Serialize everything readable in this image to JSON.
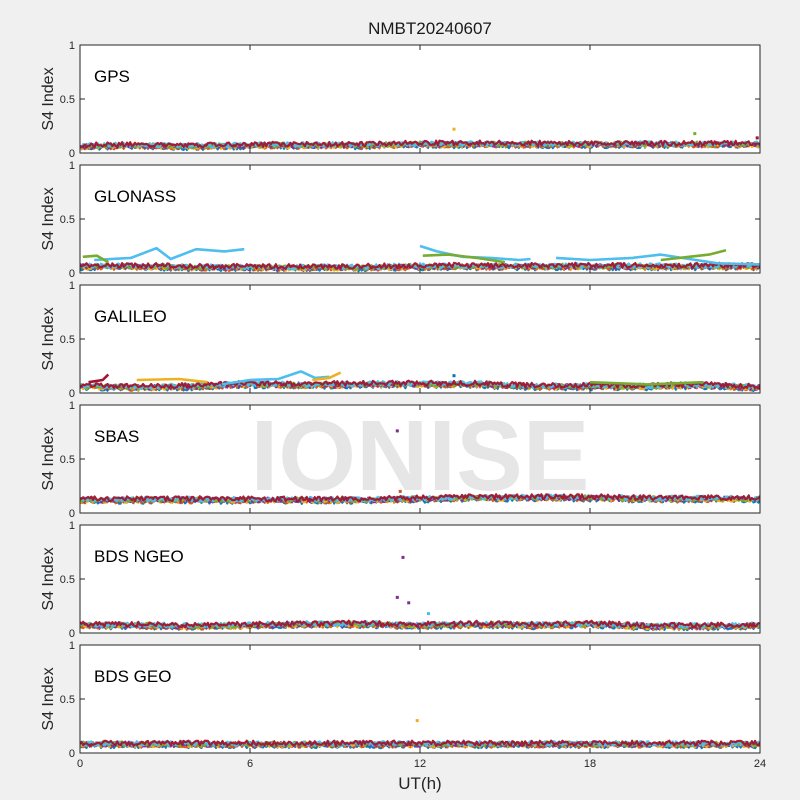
{
  "chart_data": {
    "type": "scatter",
    "title": "NMBT20240607",
    "xlabel": "UT(h)",
    "ylabel": "S4 Index",
    "xlim": [
      0,
      24
    ],
    "ylim": [
      0,
      1
    ],
    "x_ticks": [
      "0",
      "6",
      "12",
      "18",
      "24"
    ],
    "y_ticks": [
      "0",
      "0.5",
      "1"
    ],
    "grid": false,
    "watermark": "IONISE",
    "series_colors": [
      "#0072bd",
      "#d95319",
      "#edb120",
      "#7e2f8e",
      "#77ac30",
      "#4dbeee",
      "#a2142f"
    ],
    "panels": [
      {
        "label": "GPS",
        "baseline": [
          {
            "x": 0,
            "y": 0.06
          },
          {
            "x": 2,
            "y": 0.07
          },
          {
            "x": 4,
            "y": 0.06
          },
          {
            "x": 6,
            "y": 0.07
          },
          {
            "x": 8,
            "y": 0.07
          },
          {
            "x": 10,
            "y": 0.07
          },
          {
            "x": 12,
            "y": 0.08
          },
          {
            "x": 14,
            "y": 0.08
          },
          {
            "x": 16,
            "y": 0.08
          },
          {
            "x": 18,
            "y": 0.08
          },
          {
            "x": 20,
            "y": 0.08
          },
          {
            "x": 22,
            "y": 0.08
          },
          {
            "x": 24,
            "y": 0.08
          }
        ],
        "highlights": [
          {
            "x": 13.2,
            "y": 0.22,
            "color": "#edb120"
          },
          {
            "x": 21.7,
            "y": 0.18,
            "color": "#77ac30"
          },
          {
            "x": 23.9,
            "y": 0.14,
            "color": "#a2142f"
          }
        ]
      },
      {
        "label": "GLONASS",
        "baseline": [
          {
            "x": 0,
            "y": 0.06
          },
          {
            "x": 2,
            "y": 0.06
          },
          {
            "x": 4,
            "y": 0.05
          },
          {
            "x": 6,
            "y": 0.05
          },
          {
            "x": 8,
            "y": 0.05
          },
          {
            "x": 10,
            "y": 0.05
          },
          {
            "x": 12,
            "y": 0.06
          },
          {
            "x": 14,
            "y": 0.06
          },
          {
            "x": 16,
            "y": 0.06
          },
          {
            "x": 18,
            "y": 0.06
          },
          {
            "x": 20,
            "y": 0.06
          },
          {
            "x": 22,
            "y": 0.06
          },
          {
            "x": 24,
            "y": 0.06
          }
        ],
        "traces": [
          {
            "color": "#4dbeee",
            "points": [
              {
                "x": 0.5,
                "y": 0.12
              },
              {
                "x": 1.8,
                "y": 0.14
              },
              {
                "x": 2.7,
                "y": 0.23
              },
              {
                "x": 3.2,
                "y": 0.13
              },
              {
                "x": 4.1,
                "y": 0.22
              },
              {
                "x": 5.1,
                "y": 0.2
              },
              {
                "x": 5.8,
                "y": 0.22
              }
            ]
          },
          {
            "color": "#77ac30",
            "points": [
              {
                "x": 0.1,
                "y": 0.15
              },
              {
                "x": 0.6,
                "y": 0.16
              },
              {
                "x": 1.0,
                "y": 0.1
              }
            ]
          },
          {
            "color": "#4dbeee",
            "points": [
              {
                "x": 12.0,
                "y": 0.25
              },
              {
                "x": 12.6,
                "y": 0.2
              },
              {
                "x": 13.5,
                "y": 0.15
              },
              {
                "x": 14.5,
                "y": 0.14
              },
              {
                "x": 15.5,
                "y": 0.12
              },
              {
                "x": 15.9,
                "y": 0.13
              }
            ]
          },
          {
            "color": "#77ac30",
            "points": [
              {
                "x": 12.1,
                "y": 0.16
              },
              {
                "x": 13.0,
                "y": 0.17
              },
              {
                "x": 14.0,
                "y": 0.14
              },
              {
                "x": 15.0,
                "y": 0.1
              }
            ]
          },
          {
            "color": "#4dbeee",
            "points": [
              {
                "x": 16.8,
                "y": 0.14
              },
              {
                "x": 18.0,
                "y": 0.12
              },
              {
                "x": 19.5,
                "y": 0.14
              },
              {
                "x": 20.5,
                "y": 0.17
              },
              {
                "x": 21.5,
                "y": 0.13
              },
              {
                "x": 22.5,
                "y": 0.09
              },
              {
                "x": 24.0,
                "y": 0.08
              }
            ]
          },
          {
            "color": "#77ac30",
            "points": [
              {
                "x": 20.5,
                "y": 0.12
              },
              {
                "x": 21.5,
                "y": 0.15
              },
              {
                "x": 22.2,
                "y": 0.17
              },
              {
                "x": 22.8,
                "y": 0.21
              }
            ]
          }
        ],
        "highlights": []
      },
      {
        "label": "GALILEO",
        "baseline": [
          {
            "x": 0,
            "y": 0.06
          },
          {
            "x": 2,
            "y": 0.05
          },
          {
            "x": 4,
            "y": 0.06
          },
          {
            "x": 6,
            "y": 0.08
          },
          {
            "x": 8,
            "y": 0.07
          },
          {
            "x": 10,
            "y": 0.08
          },
          {
            "x": 12,
            "y": 0.08
          },
          {
            "x": 14,
            "y": 0.08
          },
          {
            "x": 16,
            "y": 0.06
          },
          {
            "x": 18,
            "y": 0.06
          },
          {
            "x": 20,
            "y": 0.06
          },
          {
            "x": 22,
            "y": 0.07
          },
          {
            "x": 24,
            "y": 0.05
          }
        ],
        "traces": [
          {
            "color": "#a2142f",
            "points": [
              {
                "x": 0.3,
                "y": 0.1
              },
              {
                "x": 0.8,
                "y": 0.12
              },
              {
                "x": 1.0,
                "y": 0.17
              }
            ]
          },
          {
            "color": "#edb120",
            "points": [
              {
                "x": 2.0,
                "y": 0.12
              },
              {
                "x": 3.5,
                "y": 0.13
              },
              {
                "x": 4.5,
                "y": 0.1
              }
            ]
          },
          {
            "color": "#4dbeee",
            "points": [
              {
                "x": 5.0,
                "y": 0.08
              },
              {
                "x": 6.0,
                "y": 0.12
              },
              {
                "x": 7.0,
                "y": 0.13
              },
              {
                "x": 7.8,
                "y": 0.2
              },
              {
                "x": 8.3,
                "y": 0.14
              },
              {
                "x": 8.8,
                "y": 0.15
              }
            ]
          },
          {
            "color": "#edb120",
            "points": [
              {
                "x": 8.2,
                "y": 0.12
              },
              {
                "x": 8.8,
                "y": 0.14
              },
              {
                "x": 9.2,
                "y": 0.19
              }
            ]
          },
          {
            "color": "#77ac30",
            "points": [
              {
                "x": 18.0,
                "y": 0.1
              },
              {
                "x": 20.0,
                "y": 0.08
              },
              {
                "x": 22.0,
                "y": 0.1
              }
            ]
          }
        ],
        "highlights": [
          {
            "x": 13.2,
            "y": 0.16,
            "color": "#0072bd"
          }
        ]
      },
      {
        "label": "SBAS",
        "baseline": [
          {
            "x": 0,
            "y": 0.12
          },
          {
            "x": 2,
            "y": 0.12
          },
          {
            "x": 4,
            "y": 0.12
          },
          {
            "x": 6,
            "y": 0.12
          },
          {
            "x": 8,
            "y": 0.12
          },
          {
            "x": 10,
            "y": 0.12
          },
          {
            "x": 12,
            "y": 0.13
          },
          {
            "x": 14,
            "y": 0.14
          },
          {
            "x": 16,
            "y": 0.14
          },
          {
            "x": 18,
            "y": 0.14
          },
          {
            "x": 20,
            "y": 0.13
          },
          {
            "x": 22,
            "y": 0.13
          },
          {
            "x": 24,
            "y": 0.13
          }
        ],
        "highlights": [
          {
            "x": 11.2,
            "y": 0.76,
            "color": "#7e2f8e"
          },
          {
            "x": 11.3,
            "y": 0.2,
            "color": "#d95319"
          }
        ]
      },
      {
        "label": "BDS NGEO",
        "baseline": [
          {
            "x": 0,
            "y": 0.07
          },
          {
            "x": 2,
            "y": 0.07
          },
          {
            "x": 4,
            "y": 0.06
          },
          {
            "x": 6,
            "y": 0.07
          },
          {
            "x": 8,
            "y": 0.08
          },
          {
            "x": 10,
            "y": 0.08
          },
          {
            "x": 12,
            "y": 0.07
          },
          {
            "x": 14,
            "y": 0.08
          },
          {
            "x": 16,
            "y": 0.07
          },
          {
            "x": 18,
            "y": 0.08
          },
          {
            "x": 20,
            "y": 0.06
          },
          {
            "x": 22,
            "y": 0.06
          },
          {
            "x": 24,
            "y": 0.07
          }
        ],
        "highlights": [
          {
            "x": 11.4,
            "y": 0.7,
            "color": "#7e2f8e"
          },
          {
            "x": 11.2,
            "y": 0.33,
            "color": "#7e2f8e"
          },
          {
            "x": 11.6,
            "y": 0.28,
            "color": "#7e2f8e"
          },
          {
            "x": 12.3,
            "y": 0.18,
            "color": "#4dbeee"
          }
        ]
      },
      {
        "label": "BDS GEO",
        "baseline": [
          {
            "x": 0,
            "y": 0.08
          },
          {
            "x": 2,
            "y": 0.08
          },
          {
            "x": 4,
            "y": 0.08
          },
          {
            "x": 6,
            "y": 0.08
          },
          {
            "x": 8,
            "y": 0.08
          },
          {
            "x": 10,
            "y": 0.08
          },
          {
            "x": 12,
            "y": 0.08
          },
          {
            "x": 14,
            "y": 0.08
          },
          {
            "x": 16,
            "y": 0.08
          },
          {
            "x": 18,
            "y": 0.08
          },
          {
            "x": 20,
            "y": 0.08
          },
          {
            "x": 22,
            "y": 0.08
          },
          {
            "x": 24,
            "y": 0.08
          }
        ],
        "highlights": [
          {
            "x": 11.9,
            "y": 0.3,
            "color": "#edb120"
          }
        ]
      }
    ]
  }
}
